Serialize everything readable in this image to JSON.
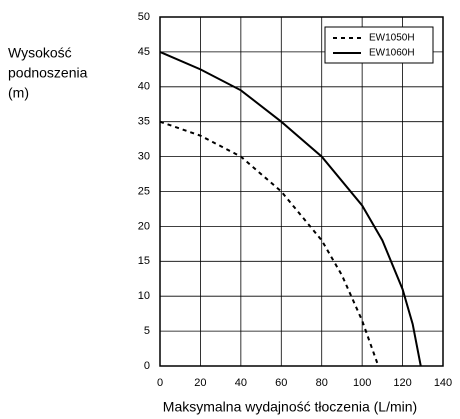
{
  "chart_data": {
    "type": "line",
    "x_label": "Maksymalna wydajność tłoczenia (L/min)",
    "y_label": [
      "Wysokość",
      "podnoszenia",
      "(m)"
    ],
    "xlim": [
      0,
      140
    ],
    "xticks": [
      0,
      20,
      40,
      60,
      80,
      100,
      120,
      140
    ],
    "ylim": [
      0,
      50
    ],
    "yticks": [
      0,
      5,
      10,
      15,
      20,
      25,
      30,
      35,
      40,
      45,
      50
    ],
    "grid": true,
    "legend": "upper right",
    "series": [
      {
        "name": "EW1050H",
        "color": "#000000",
        "dashed": true,
        "x": [
          0,
          20,
          40,
          60,
          80,
          90,
          100,
          108
        ],
        "values": [
          35,
          33,
          30,
          25,
          18,
          13,
          6.5,
          0
        ]
      },
      {
        "name": "EW1060H",
        "color": "#000000",
        "dashed": false,
        "x": [
          0,
          20,
          40,
          60,
          80,
          100,
          110,
          120,
          125,
          129
        ],
        "values": [
          45,
          42.5,
          39.5,
          35,
          30,
          23,
          18,
          11,
          6,
          0
        ]
      }
    ]
  }
}
